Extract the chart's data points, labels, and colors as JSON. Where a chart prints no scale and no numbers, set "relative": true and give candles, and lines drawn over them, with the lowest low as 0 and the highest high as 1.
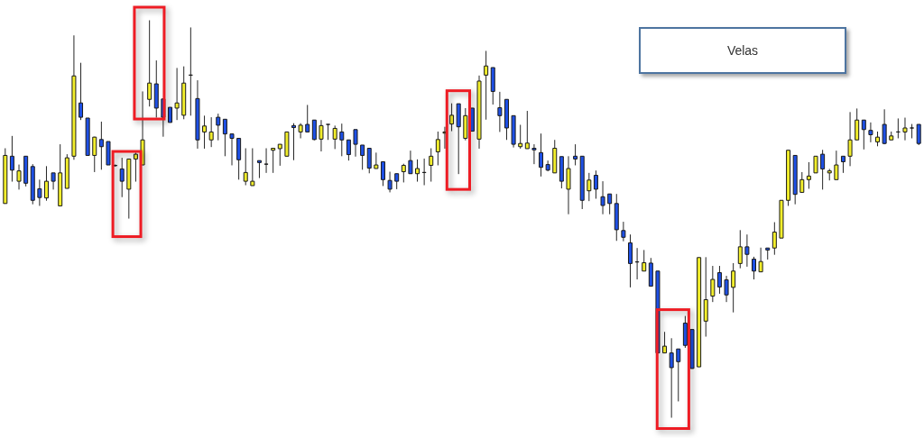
{
  "chart_data": {
    "type": "candlestick",
    "relative": true,
    "tick_labels": false,
    "annotations": [
      "Velas"
    ],
    "categories": [
      null,
      null,
      null,
      null,
      null,
      null,
      null,
      null,
      null,
      null,
      null,
      null,
      null,
      null,
      null,
      null,
      null,
      null,
      null,
      null,
      null,
      null,
      null,
      null,
      null,
      null,
      null,
      null,
      null,
      null,
      null,
      null,
      null,
      null,
      null,
      null,
      null,
      null,
      null,
      null,
      null,
      null,
      null,
      null,
      null,
      null,
      null,
      null,
      null,
      null,
      null,
      null,
      null,
      null,
      null,
      null,
      null,
      null,
      null,
      null,
      null,
      null,
      null,
      null,
      null,
      null,
      null,
      null,
      null,
      null,
      null,
      null,
      null,
      null,
      null,
      null,
      null,
      null,
      null,
      null,
      null,
      null,
      null,
      null,
      null,
      null,
      null,
      null,
      null,
      null,
      null,
      null,
      null,
      null,
      null,
      null,
      null,
      null,
      null,
      null,
      null,
      null,
      null,
      null,
      null,
      null,
      null,
      null,
      null,
      null,
      null,
      null,
      null,
      null,
      null,
      null,
      null,
      null,
      null,
      null,
      null,
      null,
      null,
      null,
      null,
      null,
      null,
      null,
      null,
      null,
      null,
      null,
      null,
      null
    ],
    "ohlc": [
      [
        0.539,
        0.678,
        0.539,
        0.66
      ],
      [
        0.658,
        0.709,
        0.594,
        0.623
      ],
      [
        0.595,
        0.637,
        0.574,
        0.621
      ],
      [
        0.658,
        0.658,
        0.582,
        0.59
      ],
      [
        0.632,
        0.638,
        0.537,
        0.547
      ],
      [
        0.576,
        0.599,
        0.533,
        0.554
      ],
      [
        0.553,
        0.633,
        0.546,
        0.595
      ],
      [
        0.616,
        0.616,
        0.574,
        0.595
      ],
      [
        0.533,
        0.688,
        0.533,
        0.616
      ],
      [
        0.577,
        0.663,
        0.577,
        0.654
      ],
      [
        0.658,
        0.962,
        0.649,
        0.86
      ],
      [
        0.792,
        0.893,
        0.749,
        0.756
      ],
      [
        0.754,
        0.754,
        0.66,
        0.66
      ],
      [
        0.66,
        0.707,
        0.618,
        0.706
      ],
      [
        0.7,
        0.745,
        0.624,
        0.682
      ],
      [
        0.695,
        0.695,
        0.636,
        0.636
      ],
      [
        0.635,
        0.637,
        0.632,
        0.634
      ],
      [
        0.626,
        0.654,
        0.555,
        0.595
      ],
      [
        0.575,
        0.651,
        0.501,
        0.651
      ],
      [
        0.651,
        0.667,
        0.594,
        0.663
      ],
      [
        0.636,
        0.821,
        0.636,
        0.699
      ],
      [
        0.801,
        1,
        0.783,
        0.842
      ],
      [
        0.84,
        0.899,
        0.755,
        0.779
      ],
      [
        0.802,
        0.802,
        0.707,
        0.756
      ],
      [
        0.781,
        0.781,
        0.743,
        0.743
      ],
      [
        0.779,
        0.88,
        0.749,
        0.792
      ],
      [
        0.761,
        0.884,
        0.751,
        0.842
      ],
      [
        0.862,
        0.982,
        0.76,
        0.862
      ],
      [
        0.803,
        0.849,
        0.677,
        0.699
      ],
      [
        0.719,
        0.76,
        0.677,
        0.734
      ],
      [
        0.699,
        0.756,
        0.681,
        0.719
      ],
      [
        0.756,
        0.765,
        0.698,
        0.736
      ],
      [
        0.751,
        0.751,
        0.658,
        0.714
      ],
      [
        0.714,
        0.714,
        0.635,
        0.703
      ],
      [
        0.703,
        0.703,
        0.599,
        0.649
      ],
      [
        0.595,
        0.678,
        0.585,
        0.617
      ],
      [
        0.584,
        0.678,
        0.584,
        0.595
      ],
      [
        0.647,
        0.647,
        0.603,
        0.642
      ],
      [
        0.638,
        0.678,
        0.616,
        0.638
      ],
      [
        0.673,
        0.678,
        0.616,
        0.678
      ],
      [
        0.677,
        0.688,
        0.634,
        0.688
      ],
      [
        0.658,
        0.719,
        0.658,
        0.719
      ],
      [
        0.735,
        0.741,
        0.648,
        0.73
      ],
      [
        0.719,
        0.741,
        0.703,
        0.736
      ],
      [
        0.738,
        0.787,
        0.719,
        0.719
      ],
      [
        0.749,
        0.749,
        0.698,
        0.7
      ],
      [
        0.701,
        0.749,
        0.67,
        0.735
      ],
      [
        0.738,
        0.738,
        0.699,
        0.738
      ],
      [
        0.701,
        0.735,
        0.676,
        0.728
      ],
      [
        0.719,
        0.74,
        0.658,
        0.699
      ],
      [
        0.699,
        0.699,
        0.647,
        0.662
      ],
      [
        0.725,
        0.725,
        0.657,
        0.688
      ],
      [
        0.686,
        0.686,
        0.624,
        0.66
      ],
      [
        0.678,
        0.678,
        0.615,
        0.628
      ],
      [
        0.627,
        0.667,
        0.627,
        0.636
      ],
      [
        0.644,
        0.644,
        0.583,
        0.599
      ],
      [
        0.597,
        0.619,
        0.567,
        0.575
      ],
      [
        0.614,
        0.614,
        0.575,
        0.595
      ],
      [
        0.619,
        0.639,
        0.592,
        0.635
      ],
      [
        0.647,
        0.672,
        0.614,
        0.614
      ],
      [
        0.614,
        0.65,
        0.594,
        0.627
      ],
      [
        0.617,
        0.652,
        0.585,
        0.617
      ],
      [
        0.635,
        0.678,
        0.594,
        0.658
      ],
      [
        0.669,
        0.72,
        0.635,
        0.7
      ],
      [
        0.716,
        0.732,
        0.677,
        0.719
      ],
      [
        0.739,
        0.791,
        0.721,
        0.761
      ],
      [
        0.79,
        0.79,
        0.613,
        0.732
      ],
      [
        0.703,
        0.779,
        0.698,
        0.76
      ],
      [
        0.779,
        0.779,
        0.721,
        0.721
      ],
      [
        0.701,
        0.861,
        0.677,
        0.847
      ],
      [
        0.862,
        0.923,
        0.75,
        0.885
      ],
      [
        0.881,
        0.881,
        0.788,
        0.821
      ],
      [
        0.78,
        0.82,
        0.719,
        0.76
      ],
      [
        0.801,
        0.801,
        0.699,
        0.729
      ],
      [
        0.76,
        0.76,
        0.68,
        0.688
      ],
      [
        0.682,
        0.737,
        0.677,
        0.69
      ],
      [
        0.677,
        0.772,
        0.677,
        0.691
      ],
      [
        0.678,
        0.688,
        0.638,
        0.674
      ],
      [
        0.667,
        0.715,
        0.607,
        0.63
      ],
      [
        0.637,
        0.647,
        0.62,
        0.623
      ],
      [
        0.616,
        0.699,
        0.616,
        0.678
      ],
      [
        0.657,
        0.657,
        0.577,
        0.595
      ],
      [
        0.575,
        0.658,
        0.512,
        0.627
      ],
      [
        0.658,
        0.688,
        0.635,
        0.651
      ],
      [
        0.658,
        0.658,
        0.525,
        0.547
      ],
      [
        0.571,
        0.616,
        0.545,
        0.598
      ],
      [
        0.61,
        0.622,
        0.551,
        0.575
      ],
      [
        0.556,
        0.595,
        0.512,
        0.534
      ],
      [
        0.563,
        0.563,
        0.512,
        0.539
      ],
      [
        0.539,
        0.563,
        0.445,
        0.473
      ],
      [
        0.471,
        0.493,
        0.444,
        0.454
      ],
      [
        0.44,
        0.461,
        0.328,
        0.388
      ],
      [
        0.392,
        0.427,
        0.348,
        0.392
      ],
      [
        0.369,
        0.422,
        0.369,
        0.39
      ],
      [
        0.389,
        0.402,
        0.331,
        0.331
      ],
      [
        0.369,
        0.369,
        0.163,
        0.163
      ],
      [
        0.163,
        0.216,
        0.163,
        0.18
      ],
      [
        0.163,
        0.2,
        0,
        0.126
      ],
      [
        0.173,
        0.173,
        0.041,
        0.141
      ],
      [
        0.238,
        0.256,
        0.176,
        0.182
      ],
      [
        0.222,
        0.222,
        0.123,
        0.124
      ],
      [
        0.128,
        0.403,
        0.128,
        0.403
      ],
      [
        0.243,
        0.404,
        0.204,
        0.297
      ],
      [
        0.306,
        0.382,
        0.291,
        0.348
      ],
      [
        0.365,
        0.382,
        0.312,
        0.329
      ],
      [
        0.347,
        0.357,
        0.291,
        0.309
      ],
      [
        0.328,
        0.389,
        0.265,
        0.369
      ],
      [
        0.388,
        0.472,
        0.376,
        0.43
      ],
      [
        0.43,
        0.461,
        0.38,
        0.411
      ],
      [
        0.399,
        0.405,
        0.348,
        0.369
      ],
      [
        0.367,
        0.428,
        0.367,
        0.393
      ],
      [
        0.427,
        0.427,
        0.398,
        0.422
      ],
      [
        0.427,
        0.492,
        0.41,
        0.467
      ],
      [
        0.452,
        0.547,
        0.452,
        0.547
      ],
      [
        0.547,
        0.673,
        0.533,
        0.673
      ],
      [
        0.66,
        0.66,
        0.537,
        0.562
      ],
      [
        0.567,
        0.618,
        0.567,
        0.599
      ],
      [
        0.599,
        0.643,
        0.576,
        0.608
      ],
      [
        0.616,
        0.658,
        0.616,
        0.658
      ],
      [
        0.663,
        0.674,
        0.574,
        0.626
      ],
      [
        0.616,
        0.626,
        0.597,
        0.621
      ],
      [
        0.599,
        0.672,
        0.599,
        0.636
      ],
      [
        0.658,
        0.658,
        0.616,
        0.644
      ],
      [
        0.658,
        0.769,
        0.633,
        0.699
      ],
      [
        0.699,
        0.778,
        0.699,
        0.749
      ],
      [
        0.749,
        0.749,
        0.675,
        0.725
      ],
      [
        0.723,
        0.743,
        0.693,
        0.712
      ],
      [
        0.694,
        0.72,
        0.683,
        0.706
      ],
      [
        0.738,
        0.776,
        0.688,
        0.69
      ],
      [
        0.699,
        0.72,
        0.699,
        0.709
      ],
      [
        0.719,
        0.753,
        0.703,
        0.719
      ],
      [
        0.719,
        0.755,
        0.698,
        0.729
      ],
      [
        0.729,
        0.739,
        0.703,
        0.729
      ],
      [
        0.738,
        0.738,
        0.686,
        0.69
      ]
    ],
    "colors": [
      "#f2ee2c",
      "#1e50e6",
      "#f2ee2c",
      "#1e50e6",
      "#1e50e6",
      "#1e50e6",
      "#f2ee2c",
      "#1e50e6",
      "#f2ee2c",
      "#f2ee2c",
      "#f2ee2c",
      "#1e50e6",
      "#1e50e6",
      "#f2ee2c",
      "#1e50e6",
      "#1e50e6",
      "#1e50e6",
      "#1e50e6",
      "#f2ee2c",
      "#f2ee2c",
      "#f2ee2c",
      "#f2ee2c",
      "#1e50e6",
      "#1e50e6",
      "#1e50e6",
      "#f2ee2c",
      "#f2ee2c",
      "#1a1a1a",
      "#1e50e6",
      "#f2ee2c",
      "#f2ee2c",
      "#1e50e6",
      "#1e50e6",
      "#1e50e6",
      "#1e50e6",
      "#f2ee2c",
      "#f2ee2c",
      "#1e50e6",
      "#1a1a1a",
      "#f2ee2c",
      "#f2ee2c",
      "#f2ee2c",
      "#1e50e6",
      "#f2ee2c",
      "#1e50e6",
      "#1e50e6",
      "#f2ee2c",
      "#1a1a1a",
      "#f2ee2c",
      "#1e50e6",
      "#1e50e6",
      "#1e50e6",
      "#1e50e6",
      "#1e50e6",
      "#f2ee2c",
      "#1e50e6",
      "#1e50e6",
      "#1e50e6",
      "#f2ee2c",
      "#1e50e6",
      "#f2ee2c",
      "#1a1a1a",
      "#f2ee2c",
      "#f2ee2c",
      "#f2ee2c",
      "#f2ee2c",
      "#1e50e6",
      "#f2ee2c",
      "#1e50e6",
      "#f2ee2c",
      "#f2ee2c",
      "#1e50e6",
      "#1e50e6",
      "#1e50e6",
      "#1e50e6",
      "#f2ee2c",
      "#f2ee2c",
      "#1e50e6",
      "#1e50e6",
      "#1e50e6",
      "#f2ee2c",
      "#1e50e6",
      "#f2ee2c",
      "#1e50e6",
      "#1e50e6",
      "#f2ee2c",
      "#1e50e6",
      "#1e50e6",
      "#1e50e6",
      "#1e50e6",
      "#1e50e6",
      "#1e50e6",
      "#1a1a1a",
      "#f2ee2c",
      "#1e50e6",
      "#1e50e6",
      "#f2ee2c",
      "#1e50e6",
      "#1e50e6",
      "#1e50e6",
      "#1e50e6",
      "#f2ee2c",
      "#f2ee2c",
      "#f2ee2c",
      "#1e50e6",
      "#1e50e6",
      "#f2ee2c",
      "#f2ee2c",
      "#1e50e6",
      "#1e50e6",
      "#f2ee2c",
      "#1e50e6",
      "#f2ee2c",
      "#f2ee2c",
      "#f2ee2c",
      "#1e50e6",
      "#f2ee2c",
      "#f2ee2c",
      "#f2ee2c",
      "#1e50e6",
      "#f2ee2c",
      "#f2ee2c",
      "#1e50e6",
      "#f2ee2c",
      "#f2ee2c",
      "#1e50e6",
      "#1e50e6",
      "#f2ee2c",
      "#1e50e6",
      "#f2ee2c",
      "#1a1a1a",
      "#f2ee2c",
      "#1a1a1a",
      "#1e50e6"
    ]
  }
}
